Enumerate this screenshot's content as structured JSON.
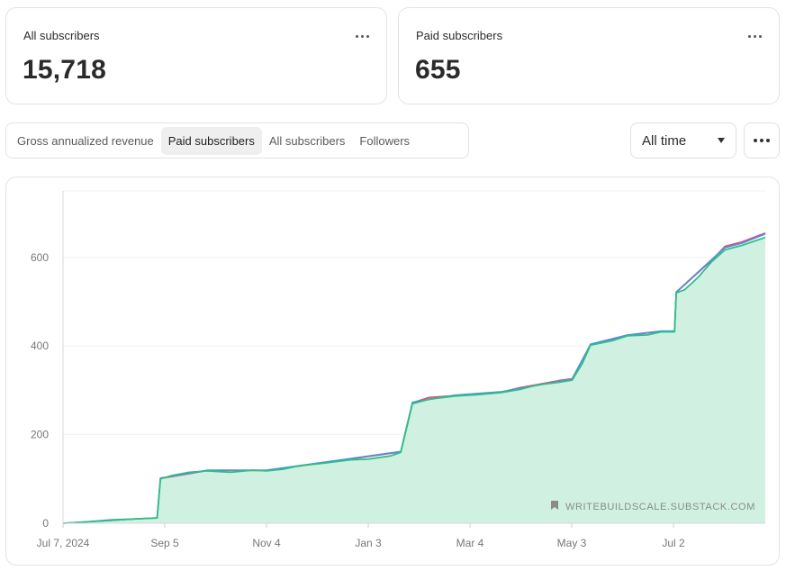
{
  "cards": {
    "all": {
      "label": "All subscribers",
      "value": "15,718"
    },
    "paid": {
      "label": "Paid subscribers",
      "value": "655"
    }
  },
  "tabs": [
    {
      "label": "Gross annualized revenue",
      "active": false
    },
    {
      "label": "Paid subscribers",
      "active": true
    },
    {
      "label": "All subscribers",
      "active": false
    },
    {
      "label": "Followers",
      "active": false
    }
  ],
  "range_select": {
    "selected": "All time"
  },
  "watermark": "WRITEBUILDSCALE.SUBSTACK.COM",
  "chart_data": {
    "type": "area",
    "title": "",
    "xlabel": "",
    "ylabel": "",
    "x_ticks": [
      "Jul 7, 2024",
      "Sep 5",
      "Nov 4",
      "Jan 3",
      "Mar 4",
      "May 3",
      "Jul 2"
    ],
    "y_ticks": [
      0,
      200,
      400,
      600
    ],
    "xlim": [
      "2024-07-07",
      "2025-08-29"
    ],
    "ylim": [
      0,
      750
    ],
    "grid": true,
    "colors": {
      "fill": "#c8efdc",
      "main": "#2fbf86",
      "alt1": "#4a90e2",
      "alt2": "#e0457b"
    },
    "series": [
      {
        "color": "#2fbf86",
        "points": [
          [
            "2024-07-07",
            0
          ],
          [
            "2024-07-20",
            3
          ],
          [
            "2024-08-05",
            8
          ],
          [
            "2024-08-20",
            10
          ],
          [
            "2024-09-01",
            12
          ],
          [
            "2024-09-03",
            100
          ],
          [
            "2024-09-10",
            108
          ],
          [
            "2024-09-20",
            115
          ],
          [
            "2024-10-01",
            118
          ],
          [
            "2024-10-15",
            115
          ],
          [
            "2024-10-28",
            120
          ],
          [
            "2024-11-05",
            118
          ],
          [
            "2024-11-15",
            122
          ],
          [
            "2024-11-25",
            130
          ],
          [
            "2024-12-10",
            136
          ],
          [
            "2024-12-25",
            143
          ],
          [
            "2025-01-05",
            145
          ],
          [
            "2025-01-18",
            152
          ],
          [
            "2025-01-24",
            160
          ],
          [
            "2025-01-31",
            270
          ],
          [
            "2025-02-10",
            280
          ],
          [
            "2025-02-25",
            287
          ],
          [
            "2025-03-10",
            290
          ],
          [
            "2025-03-25",
            295
          ],
          [
            "2025-04-05",
            302
          ],
          [
            "2025-04-15",
            312
          ],
          [
            "2025-04-28",
            318
          ],
          [
            "2025-05-06",
            323
          ],
          [
            "2025-05-12",
            360
          ],
          [
            "2025-05-17",
            402
          ],
          [
            "2025-05-30",
            412
          ],
          [
            "2025-06-08",
            423
          ],
          [
            "2025-06-20",
            425
          ],
          [
            "2025-06-28",
            432
          ],
          [
            "2025-07-06",
            432
          ],
          [
            "2025-07-07",
            520
          ],
          [
            "2025-07-12",
            527
          ],
          [
            "2025-07-20",
            555
          ],
          [
            "2025-07-28",
            590
          ],
          [
            "2025-08-05",
            617
          ],
          [
            "2025-08-15",
            627
          ],
          [
            "2025-08-25",
            640
          ],
          [
            "2025-08-29",
            645
          ]
        ]
      },
      {
        "color": "#4a90e2",
        "points": [
          [
            "2024-07-07",
            0
          ],
          [
            "2024-08-20",
            10
          ],
          [
            "2024-09-01",
            12
          ],
          [
            "2024-09-03",
            102
          ],
          [
            "2024-10-01",
            120
          ],
          [
            "2024-11-05",
            120
          ],
          [
            "2024-12-10",
            138
          ],
          [
            "2025-01-24",
            162
          ],
          [
            "2025-01-31",
            273
          ],
          [
            "2025-02-25",
            289
          ],
          [
            "2025-03-25",
            297
          ],
          [
            "2025-04-28",
            320
          ],
          [
            "2025-05-06",
            325
          ],
          [
            "2025-05-17",
            404
          ],
          [
            "2025-06-08",
            425
          ],
          [
            "2025-06-28",
            434
          ],
          [
            "2025-07-06",
            434
          ],
          [
            "2025-07-07",
            522
          ],
          [
            "2025-07-28",
            595
          ],
          [
            "2025-08-05",
            622
          ],
          [
            "2025-08-15",
            632
          ],
          [
            "2025-08-29",
            653
          ]
        ]
      },
      {
        "color": "#e0457b",
        "points": [
          [
            "2024-07-07",
            0
          ],
          [
            "2024-08-20",
            10
          ],
          [
            "2024-09-01",
            12
          ],
          [
            "2024-09-03",
            101
          ],
          [
            "2024-10-01",
            119
          ],
          [
            "2024-11-05",
            119
          ],
          [
            "2024-12-10",
            137
          ],
          [
            "2025-01-24",
            161
          ],
          [
            "2025-01-31",
            272
          ],
          [
            "2025-02-10",
            284
          ],
          [
            "2025-02-25",
            288
          ],
          [
            "2025-03-25",
            296
          ],
          [
            "2025-04-05",
            306
          ],
          [
            "2025-04-28",
            322
          ],
          [
            "2025-05-06",
            326
          ],
          [
            "2025-05-17",
            403
          ],
          [
            "2025-06-08",
            424
          ],
          [
            "2025-06-28",
            433
          ],
          [
            "2025-07-06",
            433
          ],
          [
            "2025-07-07",
            521
          ],
          [
            "2025-07-28",
            593
          ],
          [
            "2025-08-05",
            625
          ],
          [
            "2025-08-15",
            635
          ],
          [
            "2025-08-29",
            655
          ]
        ]
      }
    ]
  }
}
